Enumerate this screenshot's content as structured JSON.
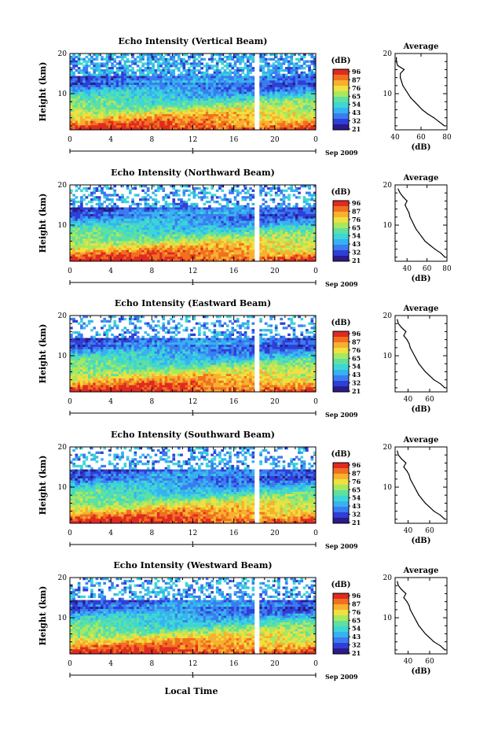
{
  "chart_data": [
    {
      "type": "heatmap",
      "title": "Echo Intensity (Vertical Beam)",
      "ylabel": "Height (km)",
      "x_ticks": [
        "0",
        "4",
        "8",
        "12",
        "16",
        "20",
        "0"
      ],
      "y_ticks": [
        "10",
        "20"
      ],
      "xlim": [
        0,
        24
      ],
      "ylim": [
        1,
        20
      ],
      "date_marker": "1",
      "date_label": "Sep 2009",
      "colorbar": {
        "unit": "(dB)",
        "ticks": [
          "96",
          "87",
          "76",
          "65",
          "54",
          "43",
          "32",
          "21"
        ]
      },
      "average": {
        "title": "Average",
        "xlabel": "(dB)",
        "x_ticks": [
          "40",
          "60",
          "80"
        ],
        "xlim": [
          40,
          80
        ],
        "profile_height": [
          2,
          3,
          4,
          5,
          6,
          7,
          8,
          9,
          10,
          11,
          12,
          13,
          14,
          15,
          16,
          17,
          18,
          19
        ],
        "profile_value": [
          78,
          74,
          70,
          65,
          61,
          58,
          55,
          52,
          50,
          48,
          46,
          45,
          44,
          44,
          47,
          42,
          41,
          41
        ]
      }
    },
    {
      "type": "heatmap",
      "title": "Echo Intensity (Northward Beam)",
      "ylabel": "Height (km)",
      "x_ticks": [
        "0",
        "4",
        "8",
        "12",
        "16",
        "20",
        "0"
      ],
      "y_ticks": [
        "10",
        "20"
      ],
      "xlim": [
        0,
        24
      ],
      "ylim": [
        1,
        20
      ],
      "date_marker": "1",
      "date_label": "Sep 2009",
      "colorbar": {
        "unit": "(dB)",
        "ticks": [
          "96",
          "87",
          "76",
          "65",
          "54",
          "43",
          "32",
          "21"
        ]
      },
      "average": {
        "title": "Average",
        "xlabel": "(dB)",
        "x_ticks": [
          "40",
          "60",
          "80"
        ],
        "xlim": [
          28,
          80
        ],
        "profile_height": [
          2,
          3,
          4,
          5,
          6,
          7,
          8,
          9,
          10,
          11,
          12,
          13,
          14,
          15,
          16,
          17,
          18,
          19
        ],
        "profile_value": [
          78,
          74,
          68,
          63,
          58,
          55,
          52,
          49,
          47,
          45,
          43,
          42,
          40,
          38,
          40,
          36,
          33,
          31
        ]
      }
    },
    {
      "type": "heatmap",
      "title": "Echo Intensity (Eastward Beam)",
      "ylabel": "Height (km)",
      "x_ticks": [
        "0",
        "4",
        "8",
        "12",
        "16",
        "20",
        "0"
      ],
      "y_ticks": [
        "10",
        "20"
      ],
      "xlim": [
        0,
        24
      ],
      "ylim": [
        1,
        20
      ],
      "date_marker": "1",
      "date_label": "Sep 2009",
      "colorbar": {
        "unit": "(dB)",
        "ticks": [
          "96",
          "87",
          "76",
          "65",
          "54",
          "43",
          "32",
          "21"
        ]
      },
      "average": {
        "title": "Average",
        "xlabel": "(dB)",
        "x_ticks": [
          "40",
          "60"
        ],
        "xlim": [
          28,
          76
        ],
        "profile_height": [
          2,
          3,
          4,
          5,
          6,
          7,
          8,
          9,
          10,
          11,
          12,
          13,
          14,
          15,
          16,
          17,
          18,
          19
        ],
        "profile_value": [
          74,
          70,
          64,
          60,
          56,
          53,
          50,
          48,
          46,
          44,
          42,
          41,
          39,
          36,
          38,
          34,
          31,
          30
        ]
      }
    },
    {
      "type": "heatmap",
      "title": "Echo Intensity (Southward Beam)",
      "ylabel": "Height (km)",
      "x_ticks": [
        "0",
        "4",
        "8",
        "12",
        "16",
        "20",
        "0"
      ],
      "y_ticks": [
        "10",
        "20"
      ],
      "xlim": [
        0,
        24
      ],
      "ylim": [
        1,
        20
      ],
      "date_marker": "1",
      "date_label": "Sep 2009",
      "colorbar": {
        "unit": "(dB)",
        "ticks": [
          "96",
          "87",
          "76",
          "65",
          "54",
          "43",
          "32",
          "21"
        ]
      },
      "average": {
        "title": "Average",
        "xlabel": "(dB)",
        "x_ticks": [
          "40",
          "60"
        ],
        "xlim": [
          28,
          76
        ],
        "profile_height": [
          2,
          3,
          4,
          5,
          6,
          7,
          8,
          9,
          10,
          11,
          12,
          13,
          14,
          15,
          16,
          17,
          18,
          19
        ],
        "profile_value": [
          74,
          70,
          64,
          60,
          56,
          53,
          50,
          48,
          46,
          44,
          42,
          41,
          39,
          36,
          38,
          34,
          31,
          30
        ]
      }
    },
    {
      "type": "heatmap",
      "title": "Echo Intensity (Westward Beam)",
      "ylabel": "Height (km)",
      "x_ticks": [
        "0",
        "4",
        "8",
        "12",
        "16",
        "20",
        "0"
      ],
      "y_ticks": [
        "10",
        "20"
      ],
      "xlim": [
        0,
        24
      ],
      "ylim": [
        1,
        20
      ],
      "date_marker": "1",
      "date_label": "Sep 2009",
      "xlabel": "Local Time",
      "colorbar": {
        "unit": "(dB)",
        "ticks": [
          "96",
          "87",
          "76",
          "65",
          "54",
          "43",
          "32",
          "21"
        ]
      },
      "average": {
        "title": "Average",
        "xlabel": "(dB)",
        "x_ticks": [
          "40",
          "60"
        ],
        "xlim": [
          28,
          76
        ],
        "profile_height": [
          2,
          3,
          4,
          5,
          6,
          7,
          8,
          9,
          10,
          11,
          12,
          13,
          14,
          15,
          16,
          17,
          18,
          19
        ],
        "profile_value": [
          74,
          70,
          64,
          60,
          56,
          53,
          50,
          48,
          46,
          44,
          42,
          41,
          39,
          36,
          38,
          34,
          31,
          30
        ]
      }
    }
  ],
  "palette": [
    "#2a1a8a",
    "#2f3fd6",
    "#3b7cf0",
    "#37b2f0",
    "#3dd6d6",
    "#5fe0a0",
    "#a8e860",
    "#f0e040",
    "#f8b030",
    "#f07020",
    "#e02a20"
  ]
}
